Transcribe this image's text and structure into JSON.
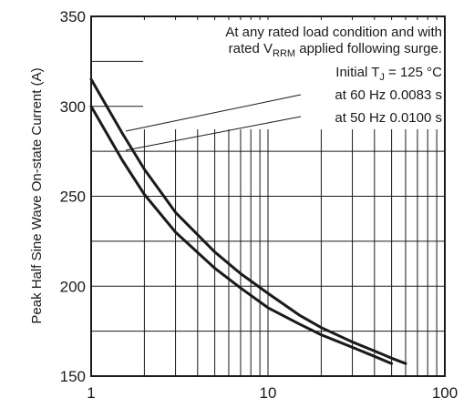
{
  "chart_data": {
    "type": "line",
    "ylabel": "Peak Half Sine Wave On-state Current (A)",
    "xlabel": "",
    "x_scale": "log",
    "xlim": [
      1,
      100
    ],
    "ylim": [
      150,
      350
    ],
    "x_ticks": [
      "1",
      "10",
      "100"
    ],
    "y_ticks": [
      "150",
      "200",
      "250",
      "300",
      "350"
    ],
    "grid": true,
    "series": [
      {
        "x": [
          1,
          1.5,
          2,
          3,
          5,
          7,
          10,
          15,
          20,
          30,
          40,
          50,
          60
        ],
        "values": [
          315,
          285,
          265,
          241,
          219,
          207,
          196,
          184,
          177,
          169,
          164,
          160,
          157
        ]
      },
      {
        "x": [
          1,
          1.5,
          2,
          3,
          5,
          7,
          10,
          15,
          20,
          30,
          40,
          50
        ],
        "values": [
          300,
          270,
          251,
          230,
          210,
          199,
          188,
          179,
          173,
          166,
          161,
          157
        ]
      }
    ],
    "annotations": {
      "line1": "At any rated load condition and with",
      "line2_pre": "rated V",
      "line2_sub": "RRM",
      "line2_post": " applied following surge.",
      "line3_pre": "Initial T",
      "line3_sub": "J",
      "line3_post": " = 125 °C",
      "line4": "at 60 Hz 0.0083 s",
      "line5": "at 50 Hz 0.0100 s"
    }
  }
}
